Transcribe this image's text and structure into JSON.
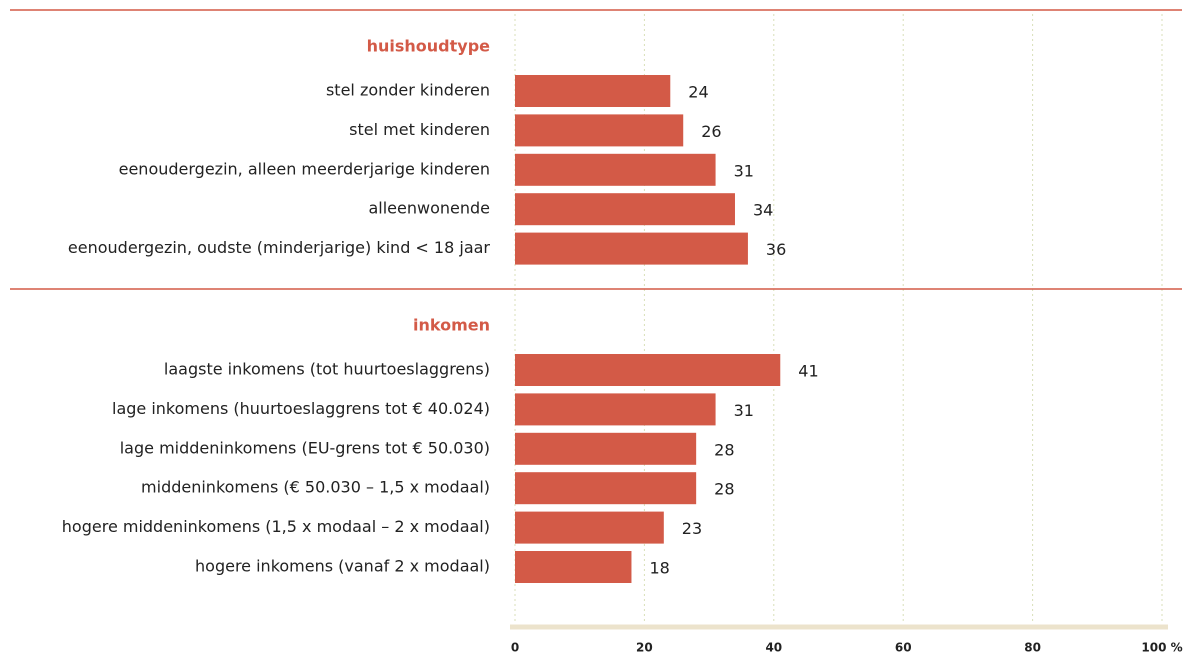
{
  "chart_data": {
    "type": "bar",
    "color": "#d35a47",
    "grid": true,
    "groups": [
      {
        "title": "huishoudtype",
        "categories": [
          "stel zonder kinderen",
          "stel met kinderen",
          "eenoudergezin, alleen meerderjarige kinderen",
          "alleenwonende",
          "eenoudergezin, oudste (minderjarige) kind < 18 jaar"
        ],
        "values": [
          24,
          26,
          31,
          34,
          36
        ]
      },
      {
        "title": "inkomen",
        "categories": [
          "laagste inkomens (tot huurtoeslaggrens)",
          "lage inkomens (huurtoeslaggrens tot € 40.024)",
          "lage middeninkomens (EU-grens tot € 50.030)",
          "middeninkomens (€ 50.030 – 1,5 x modaal)",
          "hogere middeninkomens (1,5 x modaal – 2 x modaal)",
          "hogere inkomens (vanaf 2 x modaal)"
        ],
        "values": [
          41,
          31,
          28,
          28,
          23,
          18
        ]
      }
    ],
    "xlim": [
      0,
      100
    ],
    "xticks": [
      0,
      20,
      40,
      60,
      80,
      {
        "value": 100,
        "label": "100 %"
      }
    ]
  }
}
